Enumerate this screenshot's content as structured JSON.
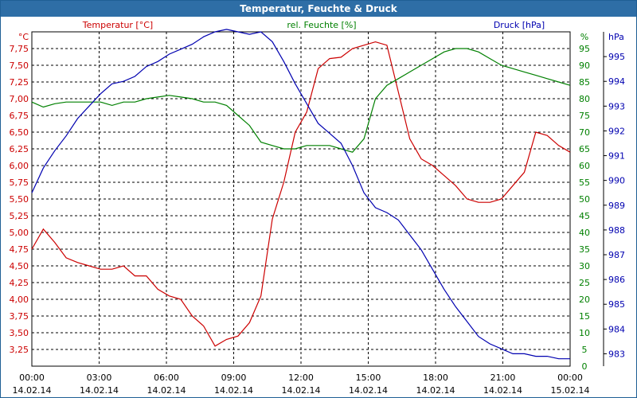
{
  "window": {
    "title": "Temperatur, Feuchte & Druck"
  },
  "colors": {
    "temperature": "#cc0000",
    "humidity": "#008000",
    "pressure": "#0000b0",
    "titlebar": "#2e6ea6"
  },
  "chart_data": {
    "type": "line",
    "title": "Temperatur, Feuchte & Druck",
    "grid": true,
    "legend": "top",
    "x": [
      "00:00",
      "00:30",
      "01:00",
      "01:30",
      "02:00",
      "02:30",
      "03:00",
      "03:30",
      "04:00",
      "04:30",
      "05:00",
      "05:30",
      "06:00",
      "06:30",
      "07:00",
      "07:30",
      "08:00",
      "08:30",
      "09:00",
      "09:30",
      "10:00",
      "10:30",
      "11:00",
      "11:30",
      "12:00",
      "12:30",
      "13:00",
      "13:30",
      "14:00",
      "14:30",
      "15:00",
      "15:30",
      "16:00",
      "16:30",
      "17:00",
      "17:30",
      "18:00",
      "18:30",
      "19:00",
      "19:30",
      "20:00",
      "20:30",
      "21:00",
      "21:30",
      "22:00",
      "22:30",
      "23:00",
      "23:30"
    ],
    "x_tick_labels": [
      {
        "time": "00:00",
        "date": "14.02.14"
      },
      {
        "time": "03:00",
        "date": "14.02.14"
      },
      {
        "time": "06:00",
        "date": "14.02.14"
      },
      {
        "time": "09:00",
        "date": "14.02.14"
      },
      {
        "time": "12:00",
        "date": "14.02.14"
      },
      {
        "time": "15:00",
        "date": "14.02.14"
      },
      {
        "time": "18:00",
        "date": "14.02.14"
      },
      {
        "time": "21:00",
        "date": "14.02.14"
      },
      {
        "time": "00:00",
        "date": "15.02.14"
      }
    ],
    "axes": {
      "left": {
        "label": "Temperatur [°C]",
        "unit": "°C",
        "ticks": [
          "3,25",
          "3,50",
          "3,75",
          "4,00",
          "4,25",
          "4,50",
          "4,75",
          "5,00",
          "5,25",
          "5,50",
          "5,75",
          "6,00",
          "6,25",
          "6,50",
          "6,75",
          "7,00",
          "7,25",
          "7,50",
          "7,75"
        ],
        "range": [
          3.0,
          8.0
        ]
      },
      "middle": {
        "label": "rel. Feuchte [%]",
        "unit": "%",
        "ticks": [
          "0",
          "5",
          "10",
          "15",
          "20",
          "25",
          "30",
          "35",
          "40",
          "45",
          "50",
          "55",
          "60",
          "65",
          "70",
          "75",
          "80",
          "85",
          "90",
          "95"
        ],
        "range": [
          0,
          100
        ]
      },
      "right": {
        "label": "Druck [hPa]",
        "unit": "hPa",
        "ticks": [
          "983",
          "984",
          "985",
          "986",
          "987",
          "988",
          "989",
          "990",
          "991",
          "992",
          "993",
          "994",
          "995"
        ],
        "range": [
          982.5,
          996.0
        ]
      }
    },
    "series": [
      {
        "name": "Temperatur [°C]",
        "axis": "left",
        "values": [
          4.75,
          5.05,
          4.85,
          4.62,
          4.55,
          4.5,
          4.45,
          4.45,
          4.5,
          4.35,
          4.35,
          4.15,
          4.05,
          4.0,
          3.75,
          3.6,
          3.3,
          3.4,
          3.45,
          3.65,
          4.05,
          5.2,
          5.75,
          6.5,
          6.8,
          7.45,
          7.6,
          7.62,
          7.75,
          7.8,
          7.85,
          7.8,
          7.1,
          6.4,
          6.1,
          6.0,
          5.85,
          5.7,
          5.5,
          5.45,
          5.45,
          5.5,
          5.7,
          5.9,
          6.5,
          6.45,
          6.3,
          6.2
        ]
      },
      {
        "name": "rel. Feuchte [%]",
        "axis": "middle",
        "values": [
          79,
          77.5,
          78.5,
          79,
          79,
          79,
          79,
          78,
          79,
          79,
          80,
          80.5,
          81,
          80.5,
          80,
          79,
          79,
          78,
          75,
          72,
          67,
          66,
          65,
          65,
          66,
          66,
          66,
          65,
          64,
          68,
          80,
          84,
          86,
          88,
          90,
          92,
          94,
          95,
          95,
          94,
          92,
          90,
          89,
          88,
          87,
          86,
          85,
          84
        ]
      },
      {
        "name": "Druck [hPa]",
        "axis": "right",
        "values": [
          989.5,
          990.5,
          991.2,
          991.8,
          992.5,
          993.0,
          993.5,
          993.9,
          994.0,
          994.2,
          994.6,
          994.8,
          995.1,
          995.3,
          995.5,
          995.8,
          996.0,
          996.1,
          996.0,
          995.9,
          996.0,
          995.6,
          994.8,
          993.9,
          993.1,
          992.3,
          991.9,
          991.5,
          990.6,
          989.5,
          988.9,
          988.7,
          988.4,
          987.8,
          987.2,
          986.4,
          985.6,
          984.9,
          984.3,
          983.7,
          983.4,
          983.2,
          983.0,
          983.0,
          982.9,
          982.9,
          982.8,
          982.8
        ]
      }
    ]
  }
}
